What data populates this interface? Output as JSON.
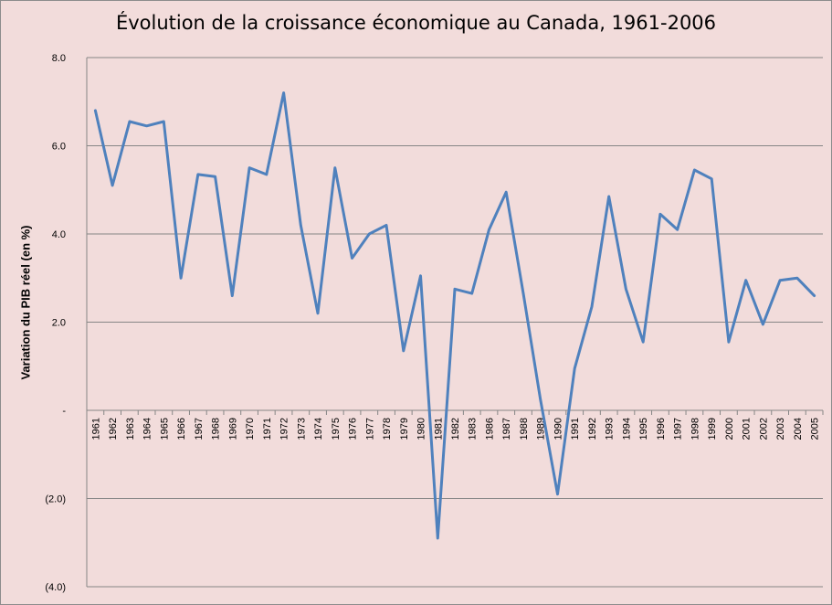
{
  "chart_data": {
    "type": "line",
    "title": "Évolution de la croissance économique au Canada, 1961-2006",
    "ylabel": "Variation du PIB réel (en %)",
    "xlabel": "",
    "ylim": [
      -4,
      8
    ],
    "yticks": [
      -4,
      -2,
      0,
      2,
      4,
      6,
      8
    ],
    "ytick_labels": [
      "(4.0)",
      "(2.0)",
      "-",
      "2.0",
      "4.0",
      "6.0",
      "8.0"
    ],
    "grid": true,
    "legend": "none",
    "line_color": "#4f81bd",
    "categories": [
      "1961",
      "1962",
      "1963",
      "1964",
      "1965",
      "1966",
      "1967",
      "1968",
      "1969",
      "1970",
      "1971",
      "1972",
      "1973",
      "1974",
      "1975",
      "1976",
      "1977",
      "1978",
      "1979",
      "1980",
      "1981",
      "1982",
      "1983",
      "1986",
      "1987",
      "1988",
      "1989",
      "1990",
      "1991",
      "1992",
      "1993",
      "1994",
      "1995",
      "1996",
      "1997",
      "1998",
      "1999",
      "2000",
      "2001",
      "2002",
      "2003",
      "2004",
      "2005"
    ],
    "values": [
      6.8,
      5.1,
      6.55,
      6.45,
      6.55,
      3.0,
      5.35,
      5.3,
      2.6,
      5.5,
      5.35,
      7.2,
      4.2,
      2.2,
      5.5,
      3.45,
      4.0,
      4.2,
      1.35,
      3.05,
      -2.9,
      2.75,
      2.65,
      4.1,
      4.95,
      2.65,
      0.25,
      -1.9,
      0.95,
      2.35,
      4.85,
      2.75,
      1.55,
      4.45,
      4.1,
      5.45,
      5.25,
      1.55,
      2.95,
      1.95,
      2.95,
      3.0,
      2.6
    ]
  }
}
